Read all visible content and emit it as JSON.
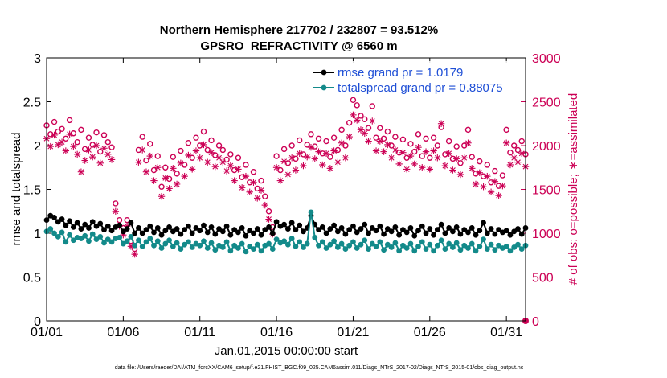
{
  "chart_data": {
    "type": "line",
    "title": "Northern Hemisphere 217702 / 232807 = 93.512%",
    "subtitle": "GPSRO_REFRACTIVITY @ 6560 m",
    "xlabel": "Jan.01,2015 00:00:00 start",
    "ylabel": "rmse and totalspread",
    "y2label": "# of obs: o=possible; ∗=assimilated",
    "x_ticks": [
      "01/01",
      "01/06",
      "01/11",
      "01/16",
      "01/21",
      "01/26",
      "01/31"
    ],
    "x_tick_days": [
      0,
      5,
      10,
      15,
      20,
      25,
      30
    ],
    "xlim": [
      0,
      31.25
    ],
    "ylim": [
      0,
      3
    ],
    "y_ticks": [
      "0",
      "0.5",
      "1",
      "1.5",
      "2",
      "2.5",
      "3"
    ],
    "y2lim": [
      0,
      3000
    ],
    "y2_ticks": [
      "0",
      "500",
      "1000",
      "1500",
      "2000",
      "2500",
      "3000"
    ],
    "legend": [
      {
        "name": "rmse grand pr = 1.0179",
        "color": "#000000"
      },
      {
        "name": "totalspread grand pr = 0.88075",
        "color": "#138a8a"
      }
    ],
    "series": [
      {
        "name": "rmse",
        "color": "#000000",
        "marker": "filled-circle",
        "x": [
          0.0,
          0.25,
          0.5,
          0.75,
          1.0,
          1.25,
          1.5,
          1.75,
          2.0,
          2.25,
          2.5,
          2.75,
          3.0,
          3.25,
          3.5,
          3.75,
          4.0,
          4.25,
          4.5,
          4.75,
          5.0,
          5.25,
          5.5,
          5.75,
          6.0,
          6.25,
          6.5,
          6.75,
          7.0,
          7.25,
          7.5,
          7.75,
          8.0,
          8.25,
          8.5,
          8.75,
          9.0,
          9.25,
          9.5,
          9.75,
          10.0,
          10.25,
          10.5,
          10.75,
          11.0,
          11.25,
          11.5,
          11.75,
          12.0,
          12.25,
          12.5,
          12.75,
          13.0,
          13.25,
          13.5,
          13.75,
          14.0,
          14.25,
          14.5,
          14.75,
          15.0,
          15.25,
          15.5,
          15.75,
          16.0,
          16.25,
          16.5,
          16.75,
          17.0,
          17.25,
          17.5,
          17.75,
          18.0,
          18.25,
          18.5,
          18.75,
          19.0,
          19.25,
          19.5,
          19.75,
          20.0,
          20.25,
          20.5,
          20.75,
          21.0,
          21.25,
          21.5,
          21.75,
          22.0,
          22.25,
          22.5,
          22.75,
          23.0,
          23.25,
          23.5,
          23.75,
          24.0,
          24.25,
          24.5,
          24.75,
          25.0,
          25.25,
          25.5,
          25.75,
          26.0,
          26.25,
          26.5,
          26.75,
          27.0,
          27.25,
          27.5,
          27.75,
          28.0,
          28.25,
          28.5,
          28.75,
          29.0,
          29.25,
          29.5,
          29.75,
          30.0,
          30.25,
          30.5,
          30.75,
          31.0,
          31.25
        ],
        "values": [
          1.15,
          1.2,
          1.18,
          1.13,
          1.16,
          1.09,
          1.14,
          1.07,
          1.12,
          1.05,
          1.1,
          1.06,
          1.13,
          1.08,
          1.11,
          1.04,
          1.08,
          1.03,
          1.07,
          1.09,
          1.02,
          1.05,
          1.12,
          1.0,
          1.06,
          1.0,
          1.04,
          1.08,
          1.01,
          1.06,
          0.98,
          1.03,
          1.07,
          1.02,
          1.05,
          0.99,
          1.04,
          1.08,
          1.0,
          1.06,
          1.03,
          1.09,
          1.01,
          1.07,
          0.99,
          1.05,
          1.02,
          1.08,
          0.98,
          1.04,
          1.01,
          1.06,
          0.97,
          1.03,
          1.0,
          1.05,
          0.98,
          1.04,
          1.07,
          1.0,
          1.13,
          1.08,
          1.1,
          1.05,
          1.12,
          1.04,
          1.09,
          1.02,
          1.06,
          1.2,
          1.1,
          1.04,
          1.07,
          1.0,
          1.05,
          1.09,
          1.02,
          1.06,
          0.99,
          1.04,
          1.08,
          1.01,
          1.05,
          1.1,
          1.0,
          1.06,
          1.03,
          1.08,
          0.99,
          1.05,
          1.02,
          1.07,
          0.98,
          1.04,
          1.01,
          1.06,
          0.97,
          1.03,
          1.08,
          1.0,
          1.05,
          0.98,
          1.04,
          1.1,
          1.0,
          1.06,
          1.02,
          1.07,
          0.99,
          1.04,
          1.01,
          1.06,
          0.98,
          1.03,
          1.12,
          1.0,
          1.05,
          0.99,
          1.04,
          1.01,
          1.03,
          0.98,
          1.02,
          1.05,
          0.99,
          1.06
        ]
      },
      {
        "name": "totalspread",
        "color": "#138a8a",
        "marker": "filled-circle",
        "x": [
          0.0,
          0.25,
          0.5,
          0.75,
          1.0,
          1.25,
          1.5,
          1.75,
          2.0,
          2.25,
          2.5,
          2.75,
          3.0,
          3.25,
          3.5,
          3.75,
          4.0,
          4.25,
          4.5,
          4.75,
          5.0,
          5.25,
          5.5,
          5.75,
          6.0,
          6.25,
          6.5,
          6.75,
          7.0,
          7.25,
          7.5,
          7.75,
          8.0,
          8.25,
          8.5,
          8.75,
          9.0,
          9.25,
          9.5,
          9.75,
          10.0,
          10.25,
          10.5,
          10.75,
          11.0,
          11.25,
          11.5,
          11.75,
          12.0,
          12.25,
          12.5,
          12.75,
          13.0,
          13.25,
          13.5,
          13.75,
          14.0,
          14.25,
          14.5,
          14.75,
          15.0,
          15.25,
          15.5,
          15.75,
          16.0,
          16.25,
          16.5,
          16.75,
          17.0,
          17.25,
          17.5,
          17.75,
          18.0,
          18.25,
          18.5,
          18.75,
          19.0,
          19.25,
          19.5,
          19.75,
          20.0,
          20.25,
          20.5,
          20.75,
          21.0,
          21.25,
          21.5,
          21.75,
          22.0,
          22.25,
          22.5,
          22.75,
          23.0,
          23.25,
          23.5,
          23.75,
          24.0,
          24.25,
          24.5,
          24.75,
          25.0,
          25.25,
          25.5,
          25.75,
          26.0,
          26.25,
          26.5,
          26.75,
          27.0,
          27.25,
          27.5,
          27.75,
          28.0,
          28.25,
          28.5,
          28.75,
          29.0,
          29.25,
          29.5,
          29.75,
          30.0,
          30.25,
          30.5,
          30.75,
          31.0,
          31.25
        ],
        "values": [
          1.02,
          1.05,
          1.0,
          0.96,
          1.01,
          0.9,
          0.98,
          0.92,
          0.95,
          0.94,
          0.97,
          0.91,
          0.99,
          0.93,
          0.96,
          0.89,
          0.93,
          0.9,
          0.94,
          0.95,
          0.88,
          0.91,
          0.96,
          0.86,
          0.92,
          0.85,
          0.9,
          0.94,
          0.86,
          0.91,
          0.83,
          0.88,
          0.92,
          0.85,
          0.89,
          0.82,
          0.87,
          0.9,
          0.84,
          0.88,
          0.86,
          0.91,
          0.83,
          0.89,
          0.81,
          0.86,
          0.84,
          0.9,
          0.8,
          0.86,
          0.83,
          0.88,
          0.79,
          0.85,
          0.82,
          0.87,
          0.8,
          0.86,
          0.88,
          0.82,
          0.93,
          0.89,
          0.91,
          0.87,
          0.94,
          0.85,
          0.9,
          0.84,
          0.88,
          1.24,
          0.95,
          0.86,
          0.9,
          0.83,
          0.87,
          0.91,
          0.84,
          0.88,
          0.82,
          0.86,
          0.9,
          0.83,
          0.87,
          0.92,
          0.82,
          0.88,
          0.85,
          0.9,
          0.81,
          0.87,
          0.84,
          0.89,
          0.8,
          0.86,
          0.83,
          0.88,
          0.8,
          0.85,
          0.9,
          0.82,
          0.87,
          0.8,
          0.86,
          0.92,
          0.82,
          0.88,
          0.84,
          0.89,
          0.81,
          0.86,
          0.83,
          0.88,
          0.8,
          0.85,
          0.93,
          0.82,
          0.87,
          0.81,
          0.86,
          0.83,
          0.85,
          0.8,
          0.84,
          0.87,
          0.82,
          0.86
        ]
      },
      {
        "name": "# obs possible",
        "axis": "right",
        "color": "#cc0055",
        "marker": "open-circle",
        "x": [
          0.0,
          0.25,
          0.5,
          0.75,
          1.0,
          1.25,
          1.5,
          1.75,
          2.0,
          2.25,
          2.5,
          2.75,
          3.0,
          3.25,
          3.5,
          3.75,
          4.0,
          4.25,
          4.5,
          4.75,
          5.0,
          5.25,
          5.5,
          5.75,
          6.0,
          6.25,
          6.5,
          6.75,
          7.0,
          7.25,
          7.5,
          7.75,
          8.0,
          8.25,
          8.5,
          8.75,
          9.0,
          9.25,
          9.5,
          9.75,
          10.0,
          10.25,
          10.5,
          10.75,
          11.0,
          11.25,
          11.5,
          11.75,
          12.0,
          12.25,
          12.5,
          12.75,
          13.0,
          13.25,
          13.5,
          13.75,
          14.0,
          14.25,
          14.5,
          14.75,
          15.0,
          15.25,
          15.5,
          15.75,
          16.0,
          16.25,
          16.5,
          16.75,
          17.0,
          17.25,
          17.5,
          17.75,
          18.0,
          18.25,
          18.5,
          18.75,
          19.0,
          19.25,
          19.5,
          19.75,
          20.0,
          20.25,
          20.5,
          20.75,
          21.0,
          21.25,
          21.5,
          21.75,
          22.0,
          22.25,
          22.5,
          22.75,
          23.0,
          23.25,
          23.5,
          23.75,
          24.0,
          24.25,
          24.5,
          24.75,
          25.0,
          25.25,
          25.5,
          25.75,
          26.0,
          26.25,
          26.5,
          26.75,
          27.0,
          27.25,
          27.5,
          27.75,
          28.0,
          28.25,
          28.5,
          28.75,
          29.0,
          29.25,
          29.5,
          29.75,
          30.0,
          30.25,
          30.5,
          30.75,
          31.0,
          31.25
        ],
        "values": [
          2230,
          2130,
          2270,
          2160,
          2190,
          2080,
          2290,
          2140,
          2040,
          2180,
          1960,
          2090,
          2010,
          2150,
          1930,
          2120,
          2040,
          1980,
          1340,
          1150,
          1060,
          1150,
          910,
          820,
          1950,
          2100,
          1830,
          2020,
          1720,
          1880,
          1530,
          1750,
          1620,
          1870,
          1680,
          1940,
          1780,
          2030,
          1860,
          2090,
          2000,
          2160,
          1950,
          2060,
          1890,
          2000,
          1950,
          1840,
          1900,
          1720,
          1860,
          1640,
          1780,
          1580,
          1700,
          1510,
          1600,
          1420,
          1250,
          1070,
          1880,
          1720,
          1960,
          1800,
          2000,
          1850,
          2060,
          1900,
          2010,
          2130,
          1990,
          2080,
          1910,
          2050,
          1870,
          2090,
          1950,
          2180,
          2000,
          2260,
          2520,
          2460,
          2340,
          2300,
          2200,
          2450,
          2090,
          2200,
          2080,
          2160,
          2000,
          2100,
          1920,
          2070,
          1860,
          2020,
          1930,
          2130,
          1880,
          2080,
          1860,
          2090,
          2000,
          2210,
          1900,
          2050,
          1850,
          1990,
          1800,
          2000,
          2180,
          1870,
          1680,
          1820,
          1650,
          1780,
          1580,
          1710,
          1540,
          1660,
          2180,
          1920,
          2000,
          1950,
          2050,
          1900
        ]
      },
      {
        "name": "# obs assimilated",
        "axis": "right",
        "color": "#cc0055",
        "marker": "asterisk",
        "x": [
          0.0,
          0.25,
          0.5,
          0.75,
          1.0,
          1.25,
          1.5,
          1.75,
          2.0,
          2.25,
          2.5,
          2.75,
          3.0,
          3.25,
          3.5,
          3.75,
          4.0,
          4.25,
          4.5,
          4.75,
          5.0,
          5.25,
          5.5,
          5.75,
          6.0,
          6.25,
          6.5,
          6.75,
          7.0,
          7.25,
          7.5,
          7.75,
          8.0,
          8.25,
          8.5,
          8.75,
          9.0,
          9.25,
          9.5,
          9.75,
          10.0,
          10.25,
          10.5,
          10.75,
          11.0,
          11.25,
          11.5,
          11.75,
          12.0,
          12.25,
          12.5,
          12.75,
          13.0,
          13.25,
          13.5,
          13.75,
          14.0,
          14.25,
          14.5,
          14.75,
          15.0,
          15.25,
          15.5,
          15.75,
          16.0,
          16.25,
          16.5,
          16.75,
          17.0,
          17.25,
          17.5,
          17.75,
          18.0,
          18.25,
          18.5,
          18.75,
          19.0,
          19.25,
          19.5,
          19.75,
          20.0,
          20.25,
          20.5,
          20.75,
          21.0,
          21.25,
          21.5,
          21.75,
          22.0,
          22.25,
          22.5,
          22.75,
          23.0,
          23.25,
          23.5,
          23.75,
          24.0,
          24.25,
          24.5,
          24.75,
          25.0,
          25.25,
          25.5,
          25.75,
          26.0,
          26.25,
          26.5,
          26.75,
          27.0,
          27.25,
          27.5,
          27.75,
          28.0,
          28.25,
          28.5,
          28.75,
          29.0,
          29.25,
          29.5,
          29.75,
          30.0,
          30.25,
          30.5,
          30.75,
          31.0,
          31.25
        ],
        "values": [
          2080,
          1990,
          2120,
          2010,
          2040,
          1940,
          2130,
          1990,
          1900,
          1700,
          1830,
          1950,
          1870,
          2000,
          1800,
          1970,
          1900,
          1840,
          1250,
          1080,
          980,
          1080,
          850,
          760,
          1810,
          1950,
          1700,
          1880,
          1600,
          1750,
          1420,
          1630,
          1510,
          1740,
          1560,
          1800,
          1650,
          1890,
          1730,
          1940,
          1860,
          2010,
          1810,
          1920,
          1760,
          1860,
          1810,
          1710,
          1770,
          1600,
          1730,
          1520,
          1650,
          1470,
          1580,
          1400,
          1490,
          1320,
          1160,
          990,
          1750,
          1600,
          1820,
          1670,
          1860,
          1720,
          1910,
          1770,
          1870,
          1980,
          1850,
          1930,
          1780,
          1910,
          1740,
          1940,
          1810,
          2030,
          1860,
          2100,
          2350,
          2290,
          2180,
          2140,
          2050,
          2280,
          1940,
          2050,
          1930,
          2010,
          1860,
          1950,
          1790,
          1920,
          1730,
          1880,
          1790,
          1980,
          1750,
          1930,
          1730,
          1940,
          1860,
          2250,
          1770,
          1910,
          1720,
          1850,
          1670,
          1860,
          2030,
          1740,
          1560,
          1690,
          1530,
          1650,
          1470,
          1590,
          1430,
          1540,
          2030,
          1780,
          1860,
          1810,
          1910,
          1760
        ]
      }
    ]
  },
  "footnote": "data file: /Users/raeder/DAI/ATM_forcXX/CAM6_setup/f.e21.FHIST_BGC.f09_025.CAM6assim.011/Diags_NTrS_2017-02/Diags_NTrS_2015-01/obs_diag_output.nc"
}
